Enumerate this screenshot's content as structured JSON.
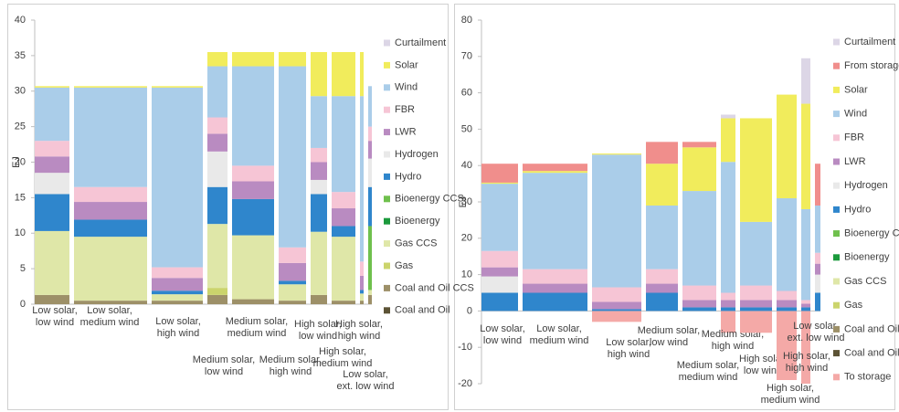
{
  "chart_data": [
    {
      "type": "bar",
      "stacked": true,
      "ylabel": "EJ",
      "categories": [
        "Low solar, low wind",
        "Low solar, medium wind",
        "Low solar, high wind",
        "Medium solar, low wind",
        "Medium solar, medium wind",
        "Medium solar, high wind",
        "High solar, low wind",
        "High solar, medium wind",
        "High solar, high wind",
        "Low solar, ext. low wind"
      ],
      "widths": [
        38,
        80,
        56,
        22,
        46,
        30,
        18,
        26,
        4,
        4
      ],
      "ylim": [
        0,
        40
      ],
      "yticks": [
        0,
        5,
        10,
        15,
        20,
        25,
        30,
        35,
        40
      ],
      "series": [
        {
          "name": "Curtailment",
          "color": "#dcd6e6",
          "values": [
            0,
            0,
            0,
            0,
            0,
            0,
            0,
            0,
            0,
            0
          ]
        },
        {
          "name": "Solar",
          "color": "#f1ec5c",
          "values": [
            0.2,
            0.2,
            0.2,
            2,
            2,
            2,
            6.2,
            6.2,
            6.2,
            0
          ]
        },
        {
          "name": "Wind",
          "color": "#aacde9",
          "values": [
            7.5,
            14,
            25.3,
            7.2,
            14,
            25.5,
            7.3,
            13.5,
            23.3,
            5.7
          ]
        },
        {
          "name": "FBR",
          "color": "#f6c5d5",
          "values": [
            2.2,
            2.1,
            1.5,
            2.3,
            2.2,
            2.2,
            2,
            2.3,
            2,
            2
          ]
        },
        {
          "name": "LWR",
          "color": "#b98bc1",
          "values": [
            2.3,
            2.5,
            1.8,
            2.5,
            2.5,
            2.5,
            2.5,
            2.5,
            2,
            2.5
          ]
        },
        {
          "name": "Hydrogen",
          "color": "#e9e9e9",
          "values": [
            3,
            0,
            0,
            5,
            0,
            0,
            2,
            0,
            0,
            4
          ]
        },
        {
          "name": "Hydro",
          "color": "#2f86cc",
          "values": [
            5.2,
            2.4,
            0.5,
            5.2,
            5.1,
            0.5,
            5.3,
            1.5,
            0.5,
            5.5
          ]
        },
        {
          "name": "Bioenergy CCS",
          "color": "#6fc04d",
          "values": [
            0,
            0,
            0,
            0,
            0,
            0,
            0,
            0,
            0,
            9
          ]
        },
        {
          "name": "Bioenergy",
          "color": "#1b9a3c",
          "values": [
            0,
            0,
            0,
            0,
            0,
            0,
            0,
            0,
            0,
            0
          ]
        },
        {
          "name": "Gas CCS",
          "color": "#dfe7a8",
          "values": [
            9,
            9,
            0.9,
            9,
            9,
            2.3,
            8.9,
            9,
            1,
            0.7
          ]
        },
        {
          "name": "Gas",
          "color": "#cbd46c",
          "values": [
            0,
            0,
            0,
            1,
            0,
            0,
            0,
            0,
            0,
            0
          ]
        },
        {
          "name": "Coal and Oil CCS",
          "color": "#9d9068",
          "values": [
            1.3,
            0.5,
            0.5,
            1.3,
            0.7,
            0.5,
            1.3,
            0.5,
            0.5,
            1.3
          ]
        },
        {
          "name": "Coal and Oil",
          "color": "#5c5335",
          "values": [
            0,
            0,
            0,
            0,
            0,
            0,
            0,
            0,
            0,
            0
          ]
        }
      ]
    },
    {
      "type": "bar",
      "stacked": true,
      "ylabel": "EJ",
      "categories": [
        "Low solar, low wind",
        "Low solar, medium wind",
        "Low solar, high wind",
        "Medium solar, low wind",
        "Medium solar, medium wind",
        "Medium solar, high wind",
        "High solar, low wind",
        "High solar, medium wind",
        "High solar, high wind",
        "Low solar, ext. low wind"
      ],
      "widths": [
        40,
        71,
        54,
        35,
        37,
        16,
        35,
        22,
        10,
        6
      ],
      "ylim": [
        -20,
        80
      ],
      "yticks": [
        -20,
        -10,
        0,
        10,
        20,
        30,
        40,
        50,
        60,
        70,
        80
      ],
      "series": [
        {
          "name": "Curtailment",
          "color": "#dcd6e6",
          "values": [
            0,
            0,
            0,
            0,
            0,
            1,
            0,
            0,
            12.5,
            0
          ]
        },
        {
          "name": "From storage",
          "color": "#f08e8c",
          "values": [
            5.2,
            2,
            0,
            6,
            1.5,
            0,
            0,
            0,
            0,
            11.5
          ]
        },
        {
          "name": "Solar",
          "color": "#f1ec5c",
          "values": [
            0.3,
            0.5,
            0.3,
            11.5,
            12,
            12,
            28.5,
            28.5,
            29,
            0
          ]
        },
        {
          "name": "Wind",
          "color": "#aacde9",
          "values": [
            18.5,
            26.5,
            36.5,
            17.5,
            26,
            36,
            17.5,
            25.5,
            25,
            13
          ]
        },
        {
          "name": "FBR",
          "color": "#f6c5d5",
          "values": [
            4.5,
            4,
            4,
            4,
            4,
            2,
            4,
            2.5,
            1,
            3
          ]
        },
        {
          "name": "LWR",
          "color": "#b98bc1",
          "values": [
            2.5,
            2.5,
            2,
            2.5,
            2,
            2,
            2,
            2,
            1,
            3
          ]
        },
        {
          "name": "Hydrogen",
          "color": "#e9e9e9",
          "values": [
            4.5,
            0,
            0,
            0,
            0,
            0,
            0,
            0,
            0,
            5
          ]
        },
        {
          "name": "Hydro",
          "color": "#2f86cc",
          "values": [
            5,
            5,
            0.5,
            5,
            1,
            1,
            1,
            1,
            1,
            5
          ]
        },
        {
          "name": "Bioenergy CCS",
          "color": "#6fc04d",
          "values": [
            0,
            0,
            0,
            0,
            0,
            0,
            0,
            0,
            0,
            0
          ]
        },
        {
          "name": "Bioenergy",
          "color": "#1b9a3c",
          "values": [
            0,
            0,
            0,
            0,
            0,
            0,
            0,
            0,
            0,
            0
          ]
        },
        {
          "name": "Gas CCS",
          "color": "#dfe7a8",
          "values": [
            0,
            0,
            0,
            0,
            0,
            0,
            0,
            0,
            0,
            0
          ]
        },
        {
          "name": "Gas",
          "color": "#cbd46c",
          "values": [
            0,
            0,
            0,
            0,
            0,
            0,
            0,
            0,
            0,
            0
          ]
        },
        {
          "name": "Coal and Oil CCS",
          "color": "#9d9068",
          "values": [
            0,
            0,
            0,
            0,
            0,
            0,
            0,
            0,
            0,
            0
          ]
        },
        {
          "name": "Coal and Oil",
          "color": "#5c5335",
          "values": [
            0,
            0,
            0,
            0,
            0,
            0,
            0,
            0,
            0,
            0
          ]
        },
        {
          "name": "To storage",
          "color": "#f4a9a7",
          "values": [
            0,
            0,
            -3,
            0,
            0,
            -6,
            -6,
            -19,
            -20,
            0
          ]
        }
      ]
    }
  ]
}
